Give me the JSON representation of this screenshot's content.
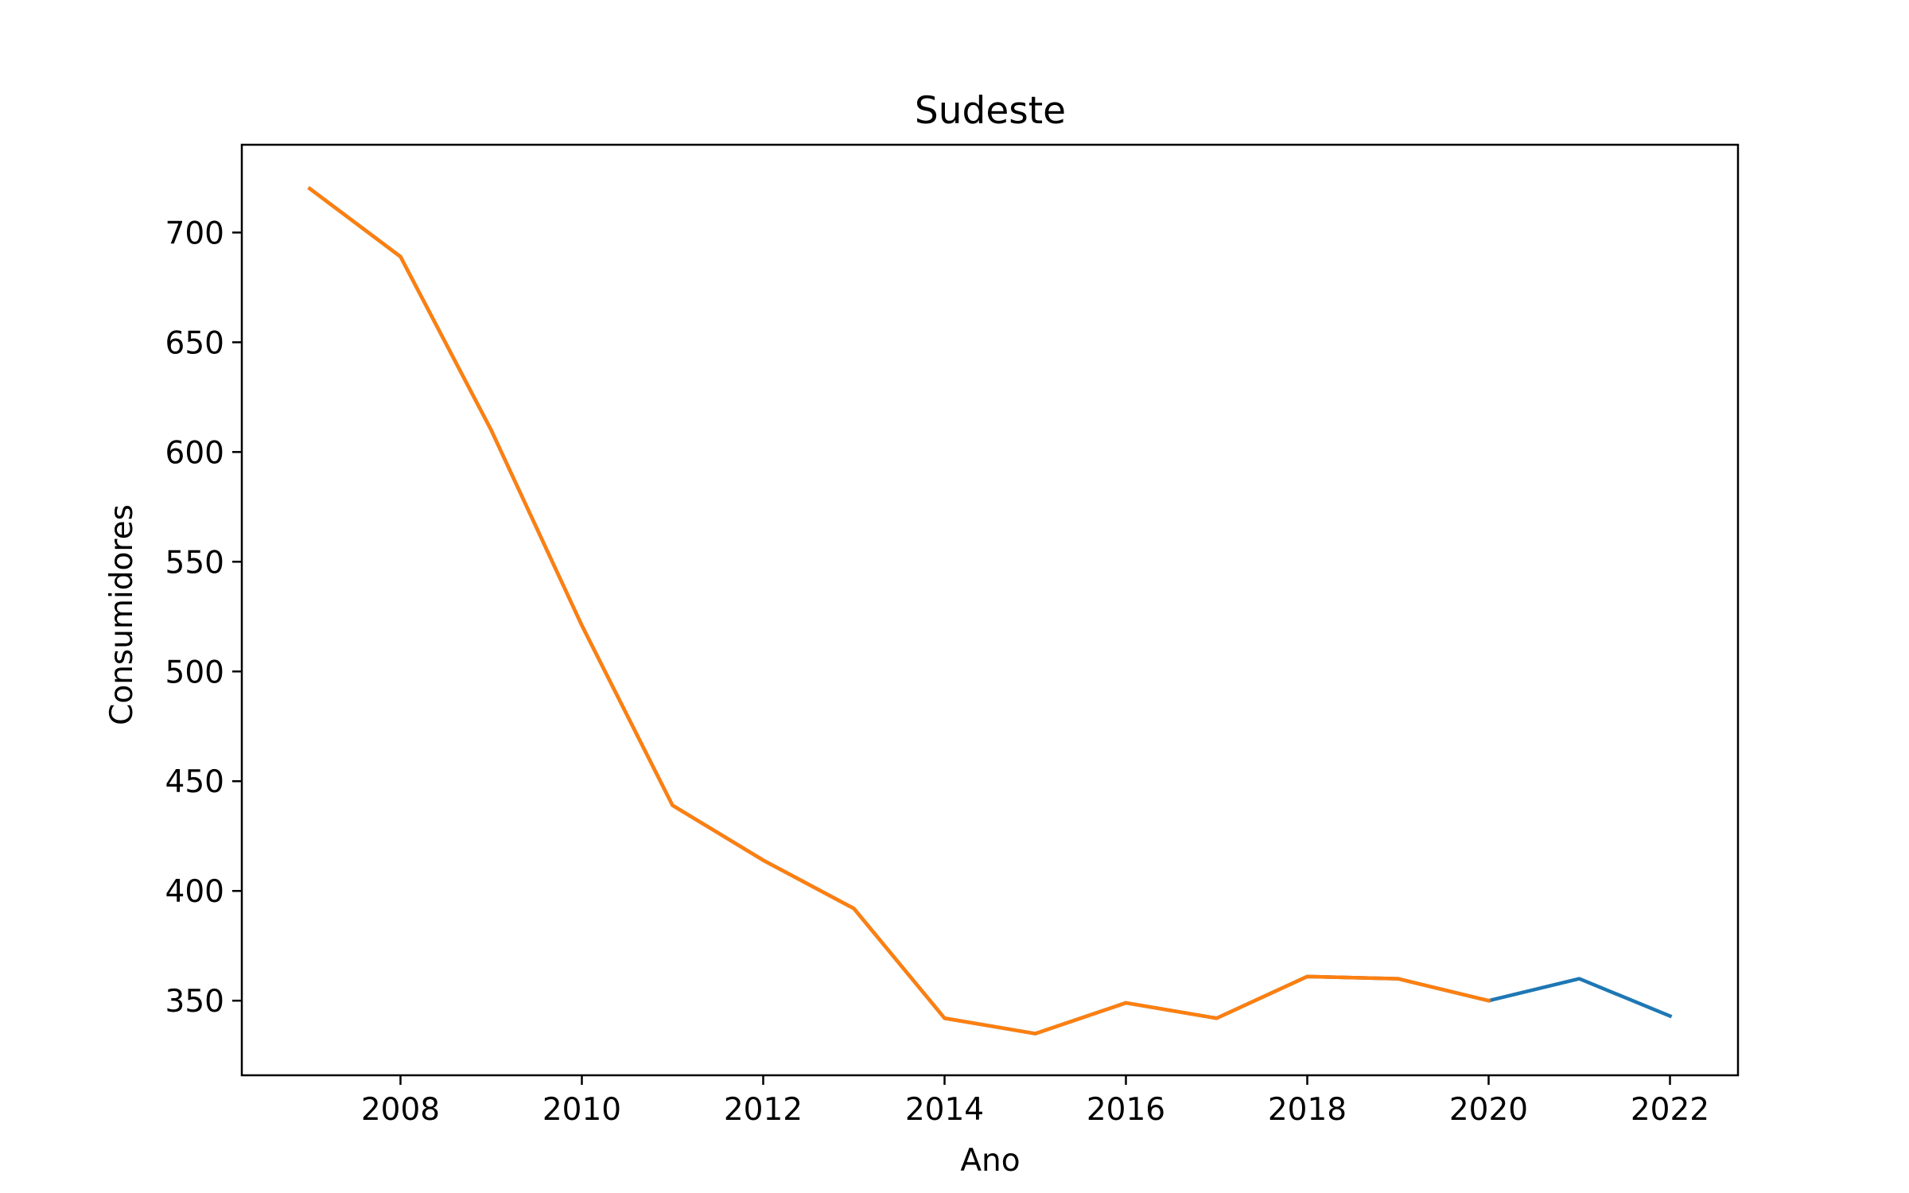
{
  "chart_data": {
    "type": "line",
    "title": "Sudeste",
    "xlabel": "Ano",
    "ylabel": "Consumidores",
    "xlim": [
      2006.25,
      2022.75
    ],
    "ylim": [
      316,
      740
    ],
    "x_ticks": [
      2008,
      2010,
      2012,
      2014,
      2016,
      2018,
      2020,
      2022
    ],
    "y_ticks": [
      350,
      400,
      450,
      500,
      550,
      600,
      650,
      700
    ],
    "grid": false,
    "series": [
      {
        "color": "#1f77b4",
        "x": [
          2007,
          2008,
          2009,
          2010,
          2011,
          2012,
          2013,
          2014,
          2015,
          2016,
          2017,
          2018,
          2019,
          2020,
          2021,
          2022
        ],
        "y": [
          720,
          689,
          610,
          521,
          439,
          414,
          392,
          342,
          335,
          349,
          342,
          361,
          360,
          350,
          360,
          343
        ]
      },
      {
        "color": "#ff7f0e",
        "x": [
          2007,
          2008,
          2009,
          2010,
          2011,
          2012,
          2013,
          2014,
          2015,
          2016,
          2017,
          2018,
          2019,
          2020
        ],
        "y": [
          720,
          689,
          610,
          521,
          439,
          414,
          392,
          342,
          335,
          349,
          342,
          361,
          360,
          350
        ]
      }
    ]
  }
}
